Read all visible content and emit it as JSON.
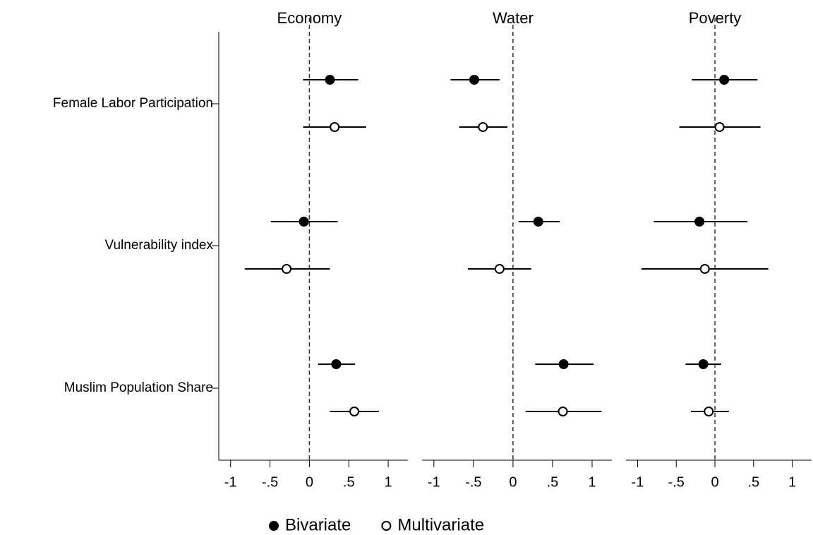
{
  "chart_data": {
    "type": "coefplot",
    "categories": [
      "Female Labor Participation",
      "Vulnerability index",
      "Muslim Population Share"
    ],
    "series": [
      {
        "name": "Bivariate",
        "color": "#000000",
        "filled": true
      },
      {
        "name": "Multivariate",
        "color": "#000000",
        "filled": false
      }
    ],
    "xlim": [
      -1.15,
      1.25
    ],
    "xticks": [
      -1,
      {
        "value": -0.5,
        "label": "-.5"
      },
      0,
      {
        "value": 0.5,
        "label": ".5"
      },
      1
    ],
    "reference_line": 0,
    "panels": [
      {
        "title": "Economy",
        "series": [
          {
            "values": [
              0.26,
              -0.07,
              0.34
            ],
            "ci_low": [
              -0.08,
              -0.49,
              0.11
            ],
            "ci_high": [
              0.62,
              0.36,
              0.58
            ]
          },
          {
            "values": [
              0.32,
              -0.29,
              0.57
            ],
            "ci_low": [
              -0.08,
              -0.82,
              0.26
            ],
            "ci_high": [
              0.72,
              0.26,
              0.88
            ]
          }
        ]
      },
      {
        "title": "Water",
        "series": [
          {
            "values": [
              -0.49,
              0.32,
              0.64
            ],
            "ci_low": [
              -0.79,
              0.07,
              0.28
            ],
            "ci_high": [
              -0.17,
              0.59,
              1.02
            ]
          },
          {
            "values": [
              -0.38,
              -0.17,
              0.63
            ],
            "ci_low": [
              -0.68,
              -0.57,
              0.16
            ],
            "ci_high": [
              -0.07,
              0.23,
              1.12
            ]
          }
        ]
      },
      {
        "title": "Poverty",
        "series": [
          {
            "values": [
              0.12,
              -0.2,
              -0.15
            ],
            "ci_low": [
              -0.3,
              -0.79,
              -0.38
            ],
            "ci_high": [
              0.55,
              0.42,
              0.08
            ]
          },
          {
            "values": [
              0.06,
              -0.13,
              -0.08
            ],
            "ci_low": [
              -0.46,
              -0.95,
              -0.31
            ],
            "ci_high": [
              0.59,
              0.69,
              0.18
            ]
          }
        ]
      }
    ]
  }
}
